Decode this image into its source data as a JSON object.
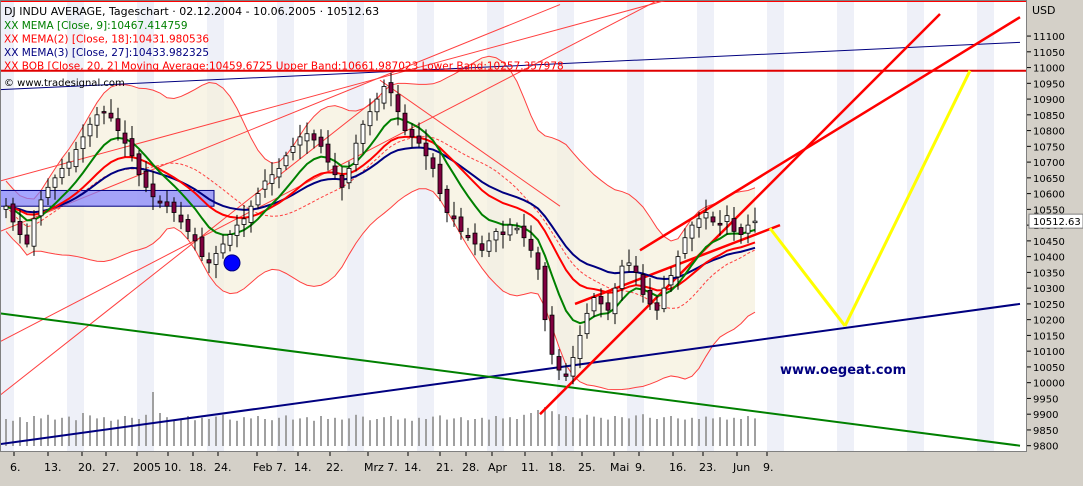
{
  "chart_data": {
    "type": "line",
    "title": "DJ INDU AVERAGE, Tageschart · 02.12.2004 - 10.06.2005 · 10512.63",
    "source_label": "© www.tradesignal.com",
    "watermark": "www.oegeat.com",
    "ylabel": "USD",
    "ylim": [
      9780,
      11170
    ],
    "y_ticks": [
      9800,
      9850,
      9900,
      9950,
      10000,
      10050,
      10100,
      10150,
      10200,
      10250,
      10300,
      10350,
      10400,
      10450,
      10500,
      10550,
      10600,
      10650,
      10700,
      10750,
      10800,
      10850,
      10900,
      10950,
      11000,
      11050,
      11100
    ],
    "last_price_label": "10512.63",
    "x_tick_labels": [
      "6.",
      "13.",
      "20.",
      "27.",
      "2005",
      "10.",
      "18.",
      "24.",
      "Feb 7.",
      "14.",
      "22.",
      "Mrz 7.",
      "14.",
      "21.",
      "28.",
      "Apr",
      "11.",
      "18.",
      "25.",
      "Mai",
      "9.",
      "16.",
      "23.",
      "Jun",
      "9."
    ],
    "legend": [
      {
        "text": "XX MEMA [Close, 9]:10467.414759",
        "color": "#008000"
      },
      {
        "text": "XX MEMA(2) [Close, 18]:10431.980536",
        "color": "#ff0000"
      },
      {
        "text": "XX MEMA(3) [Close, 27]:10433.982325",
        "color": "#000080"
      },
      {
        "text": "XX BOB [Close, 20, 2] Moving Average:10459.6725 Upper Band:10661.987023 Lower Band:10257.357978",
        "color": "#ff0000"
      }
    ],
    "closes": [
      10560,
      10510,
      10470,
      10440,
      10520,
      10580,
      10620,
      10650,
      10680,
      10700,
      10740,
      10780,
      10820,
      10850,
      10860,
      10840,
      10800,
      10760,
      10720,
      10660,
      10620,
      10590,
      10570,
      10560,
      10540,
      10510,
      10480,
      10450,
      10400,
      10380,
      10410,
      10440,
      10470,
      10500,
      10520,
      10560,
      10600,
      10640,
      10660,
      10680,
      10720,
      10750,
      10780,
      10790,
      10770,
      10750,
      10700,
      10660,
      10620,
      10680,
      10760,
      10820,
      10860,
      10900,
      10940,
      10920,
      10860,
      10800,
      10780,
      10760,
      10720,
      10680,
      10600,
      10540,
      10520,
      10480,
      10460,
      10440,
      10420,
      10450,
      10480,
      10470,
      10500,
      10490,
      10460,
      10420,
      10360,
      10200,
      10090,
      10040,
      10020,
      10080,
      10150,
      10220,
      10270,
      10250,
      10230,
      10300,
      10370,
      10380,
      10350,
      10280,
      10250,
      10230,
      10300,
      10340,
      10400,
      10460,
      10500,
      10520,
      10540,
      10510,
      10500,
      10530,
      10480,
      10470,
      10500,
      10512.63
    ],
    "volumes": [
      0.45,
      0.42,
      0.48,
      0.4,
      0.5,
      0.46,
      0.52,
      0.44,
      0.47,
      0.49,
      0.43,
      0.55,
      0.51,
      0.46,
      0.48,
      0.42,
      0.44,
      0.5,
      0.47,
      0.45,
      0.52,
      0.9,
      0.55,
      0.48,
      0.44,
      0.46,
      0.5,
      0.43,
      0.47,
      0.45,
      0.49,
      0.52,
      0.44,
      0.42,
      0.48,
      0.46,
      0.5,
      0.45,
      0.43,
      0.47,
      0.51,
      0.44,
      0.46,
      0.48,
      0.42,
      0.5,
      0.45,
      0.47,
      0.44,
      0.46,
      0.52,
      0.49,
      0.43,
      0.45,
      0.48,
      0.5,
      0.44,
      0.46,
      0.42,
      0.47,
      0.45,
      0.49,
      0.51,
      0.44,
      0.46,
      0.48,
      0.43,
      0.45,
      0.47,
      0.44,
      0.5,
      0.46,
      0.48,
      0.45,
      0.52,
      0.55,
      0.6,
      0.65,
      0.58,
      0.53,
      0.5,
      0.48,
      0.46,
      0.52,
      0.49,
      0.47,
      0.44,
      0.5,
      0.48,
      0.46,
      0.51,
      0.53,
      0.47,
      0.45,
      0.48,
      0.5,
      0.46,
      0.44,
      0.47,
      0.45,
      0.49,
      0.46,
      0.48,
      0.44,
      0.47,
      0.45,
      0.5,
      0.46
    ],
    "legend_placement": "top-left",
    "grid": true,
    "price_axis_side": "right"
  }
}
